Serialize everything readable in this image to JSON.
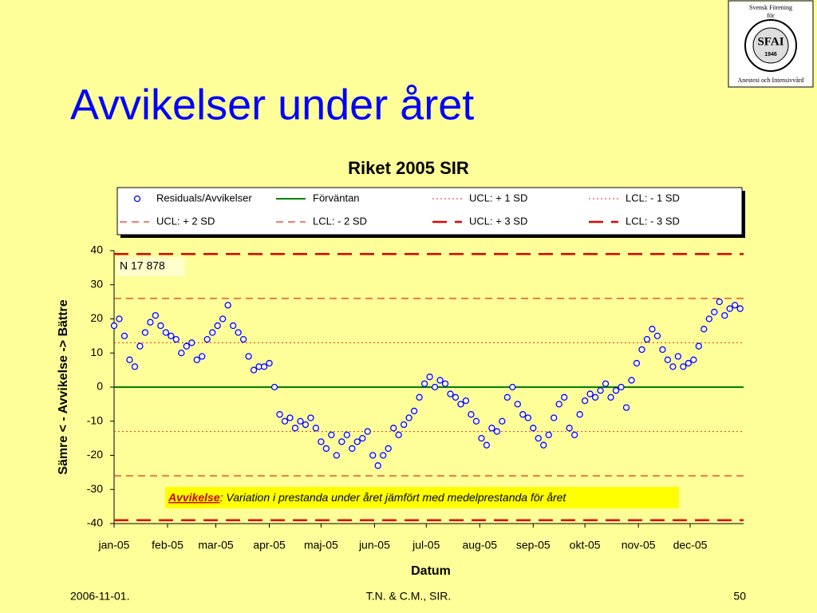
{
  "slide": {
    "title": "Avvikelser under året",
    "footer_left": "2006-11-01.",
    "footer_center": "T.N. & C.M., SIR.",
    "footer_right": "50",
    "logo": {
      "top1": "Svensk Förening",
      "top2": "för",
      "emblem": "SFAI",
      "year": "1946",
      "bottom": "Anestesi och Intensivvård"
    }
  },
  "chart_data": {
    "type": "scatter",
    "title": "Riket 2005 SIR",
    "x_label": "Datum",
    "y_label": "Sämre < - Avvikelse -> Bättre",
    "legend": "top",
    "xlim": [
      0,
      365
    ],
    "xticks": [
      {
        "value": 0,
        "label": "jan-05"
      },
      {
        "value": 31,
        "label": "feb-05"
      },
      {
        "value": 59,
        "label": "mar-05"
      },
      {
        "value": 90,
        "label": "apr-05"
      },
      {
        "value": 120,
        "label": "maj-05"
      },
      {
        "value": 151,
        "label": "jun-05"
      },
      {
        "value": 181,
        "label": "jul-05"
      },
      {
        "value": 212,
        "label": "aug-05"
      },
      {
        "value": 243,
        "label": "sep-05"
      },
      {
        "value": 273,
        "label": "okt-05"
      },
      {
        "value": 304,
        "label": "nov-05"
      },
      {
        "value": 334,
        "label": "dec-05"
      }
    ],
    "ylim": [
      -40,
      40
    ],
    "yticks": [
      -40,
      -30,
      -20,
      -10,
      0,
      10,
      20,
      30,
      40
    ],
    "series": [
      {
        "name": "Residuals/Avvikelser",
        "color": "#0000ff",
        "x": [
          0,
          3,
          6,
          9,
          12,
          15,
          18,
          21,
          24,
          27,
          30,
          33,
          36,
          39,
          42,
          45,
          48,
          51,
          54,
          57,
          60,
          63,
          66,
          69,
          72,
          75,
          78,
          81,
          84,
          87,
          90,
          93,
          96,
          99,
          102,
          105,
          108,
          111,
          114,
          117,
          120,
          123,
          126,
          129,
          132,
          135,
          138,
          141,
          144,
          147,
          150,
          153,
          156,
          159,
          162,
          165,
          168,
          171,
          174,
          177,
          180,
          183,
          186,
          189,
          192,
          195,
          198,
          201,
          204,
          207,
          210,
          213,
          216,
          219,
          222,
          225,
          228,
          231,
          234,
          237,
          240,
          243,
          246,
          249,
          252,
          255,
          258,
          261,
          264,
          267,
          270,
          273,
          276,
          279,
          282,
          285,
          288,
          291,
          294,
          297,
          300,
          303,
          306,
          309,
          312,
          315,
          318,
          321,
          324,
          327,
          330,
          333,
          336,
          339,
          342,
          345,
          348,
          351,
          354,
          357,
          360,
          363
        ],
        "values": [
          18,
          20,
          15,
          8,
          6,
          12,
          16,
          19,
          21,
          18,
          16,
          15,
          14,
          10,
          12,
          13,
          8,
          9,
          14,
          16,
          18,
          20,
          24,
          18,
          16,
          14,
          9,
          5,
          6,
          6,
          7,
          0,
          -8,
          -10,
          -9,
          -12,
          -10,
          -11,
          -9,
          -12,
          -16,
          -18,
          -14,
          -20,
          -16,
          -14,
          -18,
          -16,
          -15,
          -13,
          -20,
          -23,
          -20,
          -18,
          -12,
          -14,
          -11,
          -9,
          -7,
          -3,
          1,
          3,
          0,
          2,
          1,
          -2,
          -3,
          -5,
          -4,
          -8,
          -10,
          -15,
          -17,
          -12,
          -13,
          -10,
          -3,
          0,
          -5,
          -8,
          -9,
          -12,
          -15,
          -17,
          -14,
          -9,
          -5,
          -3,
          -12,
          -14,
          -8,
          -4,
          -2,
          -3,
          -1,
          1,
          -3,
          -1,
          0,
          -6,
          2,
          7,
          11,
          14,
          17,
          15,
          11,
          8,
          6,
          9,
          6,
          7,
          8,
          12,
          17,
          20,
          22,
          25,
          21,
          23,
          24,
          23
        ]
      }
    ],
    "reference_lines": [
      {
        "name": "Förväntan",
        "value": 0,
        "color": "#008000",
        "style": "solid"
      },
      {
        "name": "UCL: + 1 SD",
        "value": 13,
        "color": "#e03020",
        "style": "dotted"
      },
      {
        "name": "LCL: - 1 SD",
        "value": -13,
        "color": "#e03020",
        "style": "dotted"
      },
      {
        "name": "UCL: + 2 SD",
        "value": 26,
        "color": "#e03020",
        "style": "dashed"
      },
      {
        "name": "LCL: - 2 SD",
        "value": -26,
        "color": "#e03020",
        "style": "dashed"
      },
      {
        "name": "UCL: + 3 SD",
        "value": 39,
        "color": "#e00000",
        "style": "long-dash"
      },
      {
        "name": "LCL: - 3 SD",
        "value": -39,
        "color": "#e00000",
        "style": "long-dash"
      }
    ],
    "annotations": {
      "n_label": "N  17 878",
      "note_key": "Avvikelse",
      "note_text": ": Variation i prestanda under året jämfört med medelprestanda för året"
    }
  }
}
